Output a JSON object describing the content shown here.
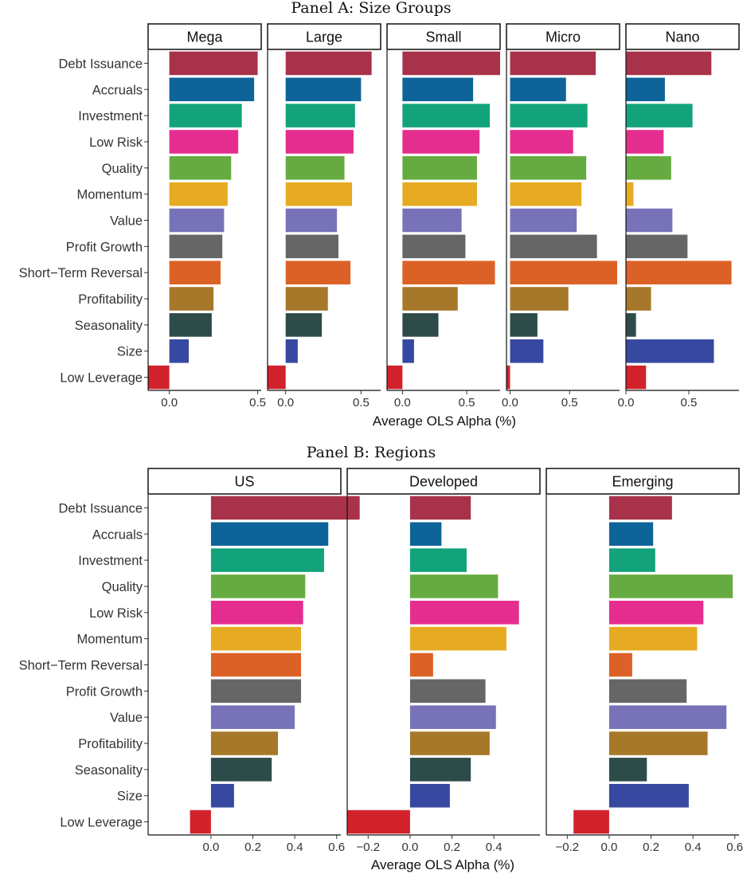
{
  "chart_data": [
    {
      "type": "bar",
      "orientation": "horizontal",
      "title": "Panel A: Size Groups",
      "xlabel": "Average OLS Alpha (%)",
      "ylabel": "",
      "categories": [
        "Debt Issuance",
        "Accruals",
        "Investment",
        "Low Risk",
        "Quality",
        "Momentum",
        "Value",
        "Profit Growth",
        "Short−Term Reversal",
        "Profitability",
        "Seasonality",
        "Size",
        "Low Leverage"
      ],
      "colors": [
        "#a8324a",
        "#0e6498",
        "#12a37a",
        "#e52d8f",
        "#66ab42",
        "#e6ab22",
        "#7873b8",
        "#666666",
        "#dc6126",
        "#a7782a",
        "#2d4c49",
        "#3748a0",
        "#d1222b"
      ],
      "grid": false,
      "facets": [
        {
          "name": "Mega",
          "xlim": [
            -0.12,
            0.52
          ],
          "ticks": [
            0.0,
            0.5
          ],
          "tick_labels": [
            "0.0",
            "0.5"
          ],
          "values": [
            0.5,
            0.48,
            0.41,
            0.39,
            0.35,
            0.33,
            0.31,
            0.3,
            0.29,
            0.25,
            0.24,
            0.11,
            -0.12
          ]
        },
        {
          "name": "Large",
          "xlim": [
            -0.12,
            0.63
          ],
          "ticks": [
            0.0,
            0.5
          ],
          "tick_labels": [
            "0.0",
            "0.5"
          ],
          "values": [
            0.57,
            0.5,
            0.46,
            0.45,
            0.39,
            0.44,
            0.34,
            0.35,
            0.43,
            0.28,
            0.24,
            0.08,
            -0.12
          ]
        },
        {
          "name": "Small",
          "xlim": [
            -0.12,
            0.76
          ],
          "ticks": [
            0.0,
            0.5
          ],
          "tick_labels": [
            "0.0",
            "0.5"
          ],
          "values": [
            0.76,
            0.55,
            0.68,
            0.6,
            0.58,
            0.58,
            0.46,
            0.49,
            0.72,
            0.43,
            0.28,
            0.09,
            -0.12
          ]
        },
        {
          "name": "Micro",
          "xlim": [
            -0.03,
            0.92
          ],
          "ticks": [
            0.0,
            0.5
          ],
          "tick_labels": [
            "0.0",
            "0.5"
          ],
          "values": [
            0.72,
            0.47,
            0.65,
            0.53,
            0.64,
            0.6,
            0.56,
            0.73,
            0.9,
            0.49,
            0.23,
            0.28,
            -0.03
          ]
        },
        {
          "name": "Nano",
          "xlim": [
            0.0,
            0.9
          ],
          "ticks": [
            0.0,
            0.5
          ],
          "tick_labels": [
            "0.0",
            "0.5"
          ],
          "values": [
            0.68,
            0.31,
            0.53,
            0.3,
            0.36,
            0.06,
            0.37,
            0.49,
            0.84,
            0.2,
            0.08,
            0.7,
            0.16
          ]
        }
      ]
    },
    {
      "type": "bar",
      "orientation": "horizontal",
      "title": "Panel B: Regions",
      "xlabel": "Average OLS Alpha (%)",
      "ylabel": "",
      "categories": [
        "Debt Issuance",
        "Accruals",
        "Investment",
        "Quality",
        "Low Risk",
        "Momentum",
        "Short−Term Reversal",
        "Profit Growth",
        "Value",
        "Profitability",
        "Seasonality",
        "Size",
        "Low Leverage"
      ],
      "colors": [
        "#a8324a",
        "#0e6498",
        "#12a37a",
        "#66ab42",
        "#e52d8f",
        "#e6ab22",
        "#dc6126",
        "#666666",
        "#7873b8",
        "#a7782a",
        "#2d4c49",
        "#3748a0",
        "#d1222b"
      ],
      "grid": false,
      "xlim": [
        -0.3,
        0.62
      ],
      "facets": [
        {
          "name": "US",
          "ticks": [
            0.0,
            0.2,
            0.4,
            0.6
          ],
          "tick_labels": [
            "0.0",
            "0.2",
            "0.4",
            "0.6"
          ],
          "values": [
            0.71,
            0.56,
            0.54,
            0.45,
            0.44,
            0.43,
            0.43,
            0.43,
            0.4,
            0.32,
            0.29,
            0.11,
            -0.1
          ]
        },
        {
          "name": "Developed",
          "ticks": [
            -0.2,
            0.0,
            0.2,
            0.4
          ],
          "tick_labels": [
            "−0.2",
            "0.0",
            "0.2",
            "0.4"
          ],
          "values": [
            0.29,
            0.15,
            0.27,
            0.42,
            0.52,
            0.46,
            0.11,
            0.36,
            0.41,
            0.38,
            0.29,
            0.19,
            -0.3
          ]
        },
        {
          "name": "Emerging",
          "ticks": [
            -0.2,
            0.0,
            0.2,
            0.4,
            0.6
          ],
          "tick_labels": [
            "−0.2",
            "0.0",
            "0.2",
            "0.4",
            "0.6"
          ],
          "values": [
            0.3,
            0.21,
            0.22,
            0.59,
            0.45,
            0.42,
            0.11,
            0.37,
            0.56,
            0.47,
            0.18,
            0.38,
            -0.17
          ]
        }
      ]
    }
  ]
}
